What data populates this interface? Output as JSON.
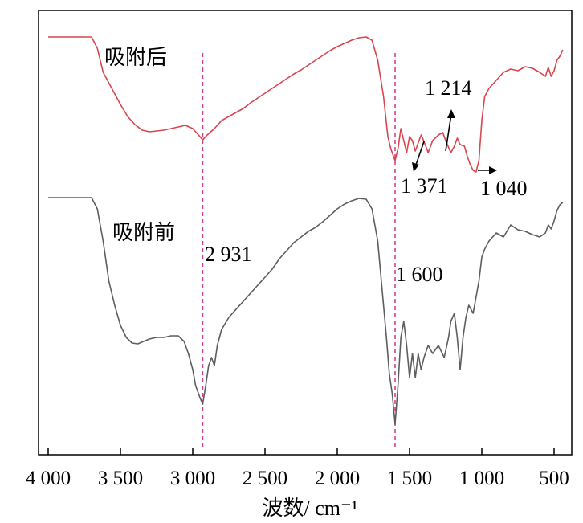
{
  "chart_data": {
    "type": "line",
    "title": "",
    "xlabel": "波数/ cm⁻¹",
    "ylabel": "",
    "xlim": [
      4050,
      430
    ],
    "x_reversed": true,
    "y_visible": false,
    "x_ticks": [
      {
        "value": 4000,
        "label": "4 000"
      },
      {
        "value": 3500,
        "label": "3 500"
      },
      {
        "value": 3000,
        "label": "3 000"
      },
      {
        "value": 2500,
        "label": "2 500"
      },
      {
        "value": 2000,
        "label": "2 000"
      },
      {
        "value": 1500,
        "label": "1 500"
      },
      {
        "value": 1000,
        "label": "1 000"
      },
      {
        "value": 500,
        "label": "500"
      }
    ],
    "series": [
      {
        "name": "吸附后",
        "color": "#d9454e",
        "points": [
          [
            4000,
            46
          ],
          [
            3700,
            46
          ],
          [
            3660,
            60
          ],
          [
            3620,
            90
          ],
          [
            3560,
            110
          ],
          [
            3500,
            130
          ],
          [
            3450,
            145
          ],
          [
            3400,
            155
          ],
          [
            3350,
            162
          ],
          [
            3300,
            164
          ],
          [
            3200,
            162
          ],
          [
            3100,
            158
          ],
          [
            3050,
            156
          ],
          [
            3000,
            160
          ],
          [
            2960,
            168
          ],
          [
            2931,
            174
          ],
          [
            2900,
            168
          ],
          [
            2850,
            160
          ],
          [
            2800,
            150
          ],
          [
            2750,
            145
          ],
          [
            2700,
            140
          ],
          [
            2650,
            135
          ],
          [
            2600,
            128
          ],
          [
            2550,
            122
          ],
          [
            2500,
            116
          ],
          [
            2450,
            110
          ],
          [
            2400,
            104
          ],
          [
            2350,
            98
          ],
          [
            2300,
            92
          ],
          [
            2250,
            87
          ],
          [
            2200,
            81
          ],
          [
            2150,
            75
          ],
          [
            2100,
            69
          ],
          [
            2050,
            63
          ],
          [
            2000,
            58
          ],
          [
            1950,
            54
          ],
          [
            1900,
            50
          ],
          [
            1850,
            47
          ],
          [
            1800,
            46
          ],
          [
            1760,
            50
          ],
          [
            1720,
            75
          ],
          [
            1680,
            120
          ],
          [
            1650,
            170
          ],
          [
            1630,
            185
          ],
          [
            1600,
            200
          ],
          [
            1580,
            185
          ],
          [
            1560,
            160
          ],
          [
            1540,
            175
          ],
          [
            1520,
            190
          ],
          [
            1500,
            170
          ],
          [
            1480,
            175
          ],
          [
            1460,
            188
          ],
          [
            1440,
            178
          ],
          [
            1420,
            168
          ],
          [
            1400,
            176
          ],
          [
            1371,
            190
          ],
          [
            1340,
            175
          ],
          [
            1300,
            168
          ],
          [
            1270,
            165
          ],
          [
            1250,
            175
          ],
          [
            1214,
            190
          ],
          [
            1190,
            182
          ],
          [
            1170,
            172
          ],
          [
            1150,
            180
          ],
          [
            1120,
            182
          ],
          [
            1100,
            195
          ],
          [
            1080,
            205
          ],
          [
            1060,
            212
          ],
          [
            1040,
            214
          ],
          [
            1020,
            200
          ],
          [
            1000,
            150
          ],
          [
            980,
            120
          ],
          [
            950,
            110
          ],
          [
            900,
            100
          ],
          [
            850,
            90
          ],
          [
            800,
            86
          ],
          [
            750,
            88
          ],
          [
            700,
            83
          ],
          [
            650,
            85
          ],
          [
            600,
            90
          ],
          [
            560,
            95
          ],
          [
            540,
            84
          ],
          [
            520,
            95
          ],
          [
            500,
            88
          ],
          [
            480,
            75
          ],
          [
            460,
            70
          ],
          [
            440,
            62
          ]
        ]
      },
      {
        "name": "吸附前",
        "color": "#5e5e5e",
        "points": [
          [
            4000,
            246
          ],
          [
            3700,
            246
          ],
          [
            3660,
            260
          ],
          [
            3620,
            300
          ],
          [
            3580,
            350
          ],
          [
            3540,
            380
          ],
          [
            3500,
            405
          ],
          [
            3460,
            420
          ],
          [
            3420,
            427
          ],
          [
            3380,
            428
          ],
          [
            3340,
            425
          ],
          [
            3300,
            422
          ],
          [
            3250,
            420
          ],
          [
            3200,
            420
          ],
          [
            3150,
            418
          ],
          [
            3100,
            418
          ],
          [
            3060,
            425
          ],
          [
            3030,
            440
          ],
          [
            3000,
            460
          ],
          [
            2980,
            480
          ],
          [
            2950,
            495
          ],
          [
            2931,
            503
          ],
          [
            2910,
            480
          ],
          [
            2890,
            455
          ],
          [
            2870,
            445
          ],
          [
            2850,
            455
          ],
          [
            2830,
            430
          ],
          [
            2800,
            410
          ],
          [
            2750,
            395
          ],
          [
            2700,
            385
          ],
          [
            2650,
            375
          ],
          [
            2600,
            365
          ],
          [
            2550,
            355
          ],
          [
            2500,
            345
          ],
          [
            2450,
            335
          ],
          [
            2400,
            322
          ],
          [
            2350,
            312
          ],
          [
            2300,
            302
          ],
          [
            2250,
            295
          ],
          [
            2200,
            288
          ],
          [
            2150,
            283
          ],
          [
            2100,
            276
          ],
          [
            2050,
            268
          ],
          [
            2000,
            260
          ],
          [
            1950,
            254
          ],
          [
            1900,
            250
          ],
          [
            1850,
            247
          ],
          [
            1800,
            248
          ],
          [
            1760,
            260
          ],
          [
            1720,
            300
          ],
          [
            1690,
            360
          ],
          [
            1660,
            420
          ],
          [
            1640,
            465
          ],
          [
            1620,
            490
          ],
          [
            1600,
            528
          ],
          [
            1580,
            480
          ],
          [
            1560,
            420
          ],
          [
            1540,
            400
          ],
          [
            1520,
            430
          ],
          [
            1500,
            470
          ],
          [
            1480,
            440
          ],
          [
            1460,
            470
          ],
          [
            1440,
            440
          ],
          [
            1420,
            460
          ],
          [
            1400,
            445
          ],
          [
            1371,
            430
          ],
          [
            1340,
            440
          ],
          [
            1300,
            430
          ],
          [
            1260,
            445
          ],
          [
            1230,
            420
          ],
          [
            1214,
            400
          ],
          [
            1190,
            390
          ],
          [
            1170,
            420
          ],
          [
            1150,
            460
          ],
          [
            1130,
            420
          ],
          [
            1110,
            395
          ],
          [
            1090,
            380
          ],
          [
            1060,
            390
          ],
          [
            1040,
            370
          ],
          [
            1020,
            350
          ],
          [
            1000,
            320
          ],
          [
            980,
            310
          ],
          [
            950,
            300
          ],
          [
            900,
            290
          ],
          [
            850,
            295
          ],
          [
            800,
            280
          ],
          [
            750,
            286
          ],
          [
            700,
            288
          ],
          [
            650,
            292
          ],
          [
            600,
            295
          ],
          [
            560,
            290
          ],
          [
            540,
            280
          ],
          [
            520,
            285
          ],
          [
            500,
            275
          ],
          [
            480,
            262
          ],
          [
            460,
            255
          ],
          [
            440,
            252
          ]
        ]
      }
    ],
    "reference_lines": [
      {
        "x": 2931,
        "label": "2 931"
      },
      {
        "x": 1600,
        "label": "1 600"
      }
    ],
    "annotations": [
      {
        "x": 1214,
        "label": "1 214"
      },
      {
        "x": 1371,
        "label": "1 371"
      },
      {
        "x": 1040,
        "label": "1 040"
      }
    ],
    "grid": false,
    "legend": "none (series labeled inline)"
  }
}
